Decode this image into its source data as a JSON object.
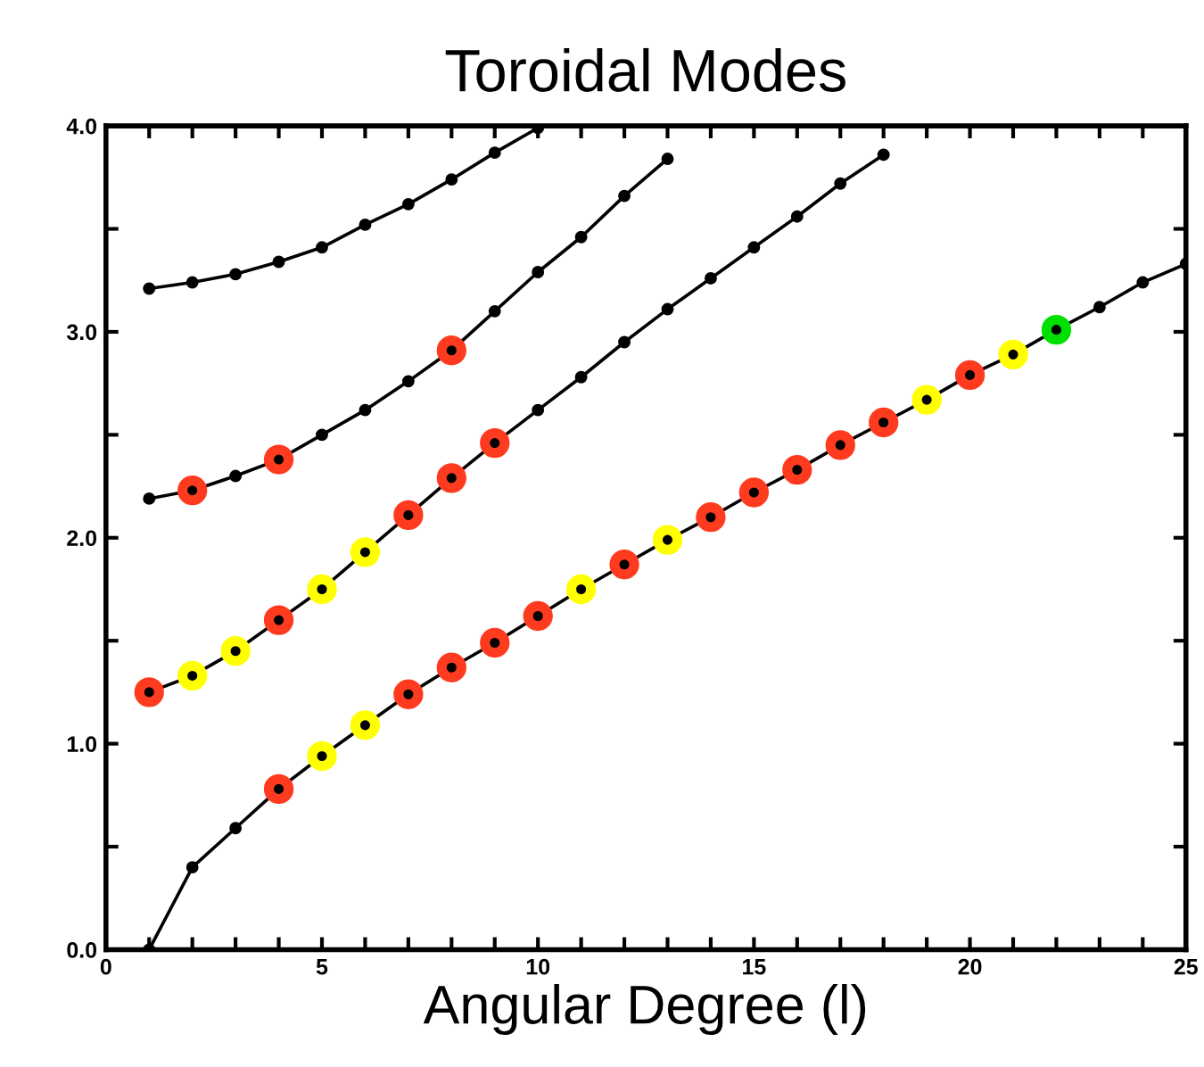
{
  "chart_data": {
    "type": "line",
    "title": "Toroidal Modes",
    "xlabel": "Angular Degree (l)",
    "xlim": [
      0,
      25
    ],
    "ylim": [
      0,
      4
    ],
    "xticks": [
      0,
      {
        "value": 1,
        "label": null
      },
      {
        "value": 2,
        "label": null
      },
      {
        "value": 3,
        "label": null
      },
      {
        "value": 4,
        "label": null
      },
      5,
      {
        "value": 6,
        "label": null
      },
      {
        "value": 7,
        "label": null
      },
      {
        "value": 8,
        "label": null
      },
      {
        "value": 9,
        "label": null
      },
      10,
      {
        "value": 11,
        "label": null
      },
      {
        "value": 12,
        "label": null
      },
      {
        "value": 13,
        "label": null
      },
      {
        "value": 14,
        "label": null
      },
      15,
      {
        "value": 16,
        "label": null
      },
      {
        "value": 17,
        "label": null
      },
      {
        "value": 18,
        "label": null
      },
      {
        "value": 19,
        "label": null
      },
      20,
      {
        "value": 21,
        "label": null
      },
      {
        "value": 22,
        "label": null
      },
      {
        "value": 23,
        "label": null
      },
      {
        "value": 24,
        "label": null
      },
      25
    ],
    "yticks": [
      {
        "value": 0,
        "label": "0.0"
      },
      {
        "value": 0.5,
        "label": null
      },
      {
        "value": 1,
        "label": "1.0"
      },
      {
        "value": 1.5,
        "label": null
      },
      {
        "value": 2,
        "label": "2.0"
      },
      {
        "value": 2.5,
        "label": null
      },
      {
        "value": 3,
        "label": "3.0"
      },
      {
        "value": 3.5,
        "label": null
      },
      {
        "value": 4,
        "label": "4.0"
      }
    ],
    "grid": false,
    "legend": false,
    "marker": "circle",
    "line_style": "solid",
    "series": [
      {
        "color": "#000000",
        "x": [
          1,
          2,
          3,
          4,
          5,
          6,
          7,
          8,
          9,
          10,
          11,
          12,
          13,
          14,
          15,
          16,
          17,
          18,
          19,
          20,
          21,
          22,
          23,
          24,
          25
        ],
        "values": [
          0.0,
          0.4,
          0.59,
          0.78,
          0.94,
          1.09,
          1.24,
          1.37,
          1.49,
          1.62,
          1.75,
          1.87,
          1.99,
          2.1,
          2.22,
          2.33,
          2.45,
          2.56,
          2.67,
          2.79,
          2.89,
          3.01,
          3.12,
          3.24,
          3.33
        ],
        "colors": [
          "#000000",
          "#000000",
          "#000000",
          "#ff3b1f",
          "#ffff00",
          "#ffff00",
          "#ff3b1f",
          "#ff3b1f",
          "#ff3b1f",
          "#ff3b1f",
          "#ffff00",
          "#ff3b1f",
          "#ffff00",
          "#ff3b1f",
          "#ff3b1f",
          "#ff3b1f",
          "#ff3b1f",
          "#ff3b1f",
          "#ffff00",
          "#ff3b1f",
          "#ffff00",
          "#00e000",
          "#000000",
          "#000000",
          "#000000"
        ]
      },
      {
        "color": "#000000",
        "x": [
          1,
          2,
          3,
          4,
          5,
          6,
          7,
          8,
          9,
          10,
          11,
          12,
          13,
          14,
          15,
          16,
          17,
          18
        ],
        "values": [
          1.25,
          1.33,
          1.45,
          1.6,
          1.75,
          1.93,
          2.11,
          2.29,
          2.46,
          2.62,
          2.78,
          2.95,
          3.11,
          3.26,
          3.41,
          3.56,
          3.72,
          3.86
        ],
        "colors": [
          "#ff3b1f",
          "#ffff00",
          "#ffff00",
          "#ff3b1f",
          "#ffff00",
          "#ffff00",
          "#ff3b1f",
          "#ff3b1f",
          "#ff3b1f",
          "#000000",
          "#000000",
          "#000000",
          "#000000",
          "#000000",
          "#000000",
          "#000000",
          "#000000",
          "#000000"
        ]
      },
      {
        "color": "#000000",
        "x": [
          1,
          2,
          3,
          4,
          5,
          6,
          7,
          8,
          9,
          10,
          11,
          12,
          13
        ],
        "values": [
          2.19,
          2.23,
          2.3,
          2.38,
          2.5,
          2.62,
          2.76,
          2.91,
          3.1,
          3.29,
          3.46,
          3.66,
          3.84
        ],
        "colors": [
          "#000000",
          "#ff3b1f",
          "#000000",
          "#ff3b1f",
          "#000000",
          "#000000",
          "#000000",
          "#ff3b1f",
          "#000000",
          "#000000",
          "#000000",
          "#000000",
          "#000000"
        ]
      },
      {
        "color": "#000000",
        "x": [
          1,
          2,
          3,
          4,
          5,
          6,
          7,
          8,
          9,
          10
        ],
        "values": [
          3.21,
          3.24,
          3.28,
          3.34,
          3.41,
          3.52,
          3.62,
          3.74,
          3.87,
          3.99
        ],
        "colors": [
          "#000000",
          "#000000",
          "#000000",
          "#000000",
          "#000000",
          "#000000",
          "#000000",
          "#000000",
          "#000000",
          "#000000"
        ]
      }
    ]
  }
}
